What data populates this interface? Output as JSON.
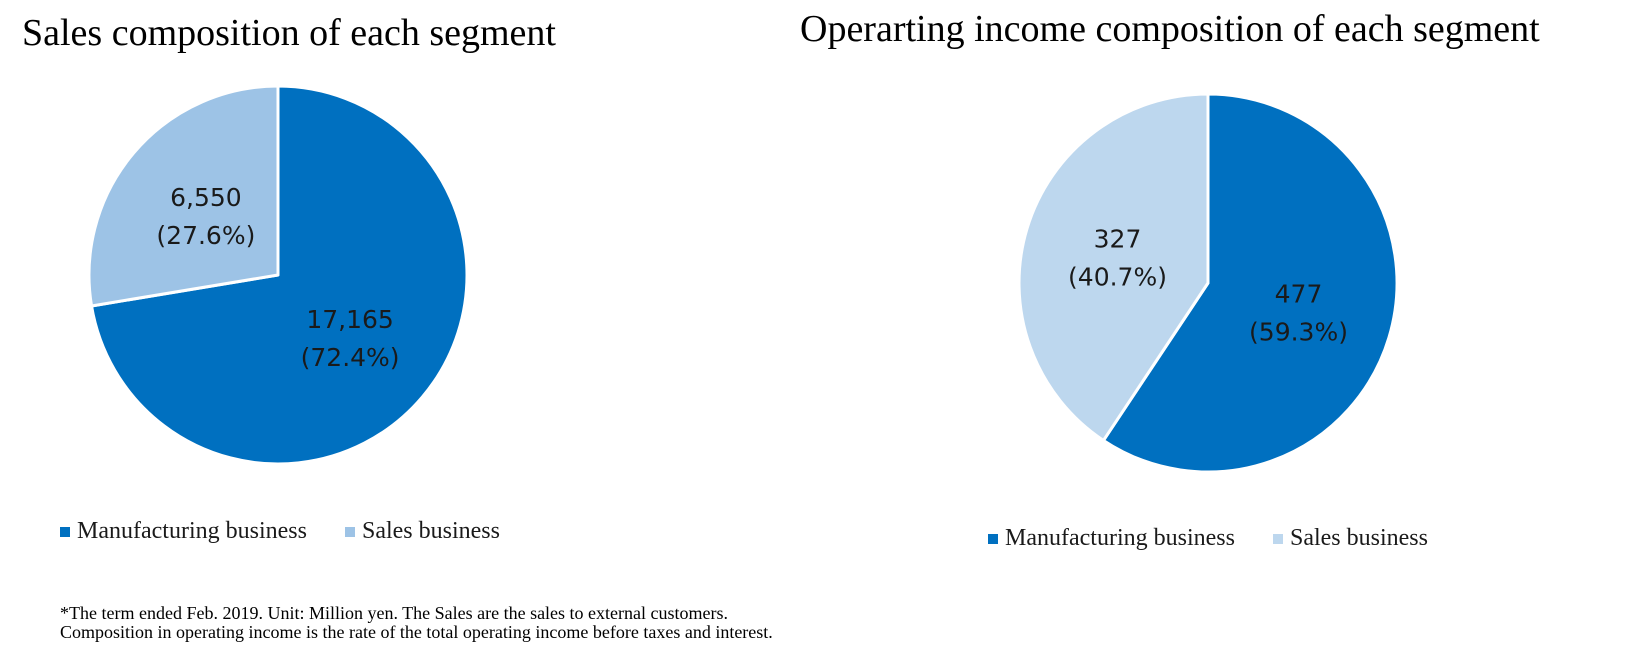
{
  "colors": {
    "manufacturing": "#0070c0",
    "sales_left": "#9dc3e6",
    "sales_right": "#bdd7ee",
    "edge": "#ffffff"
  },
  "chart_data": [
    {
      "type": "pie",
      "title": "Sales composition of each segment",
      "slices": [
        {
          "name": "Manufacturing business",
          "value": 17165,
          "value_label": "17,165",
          "percent_label": "(72.4%)",
          "color": "#0070c0"
        },
        {
          "name": "Sales business",
          "value": 6550,
          "value_label": "6,550",
          "percent_label": "(27.6%)",
          "color": "#9dc3e6"
        }
      ],
      "legend_position": "bottom-left"
    },
    {
      "type": "pie",
      "title": "Operarting income composition of each segment",
      "slices": [
        {
          "name": "Manufacturing business",
          "value": 477,
          "value_label": "477",
          "percent_label": "(59.3%)",
          "color": "#0070c0"
        },
        {
          "name": "Sales business",
          "value": 327,
          "value_label": "327",
          "percent_label": "(40.7%)",
          "color": "#bdd7ee"
        }
      ],
      "legend_position": "bottom-center"
    }
  ],
  "footnote": {
    "line1": "*The term ended Feb. 2019. Unit: Million yen. The Sales are the sales to external customers.",
    "line2": "Composition in operating income is the rate of the total operating income before taxes and interest."
  }
}
